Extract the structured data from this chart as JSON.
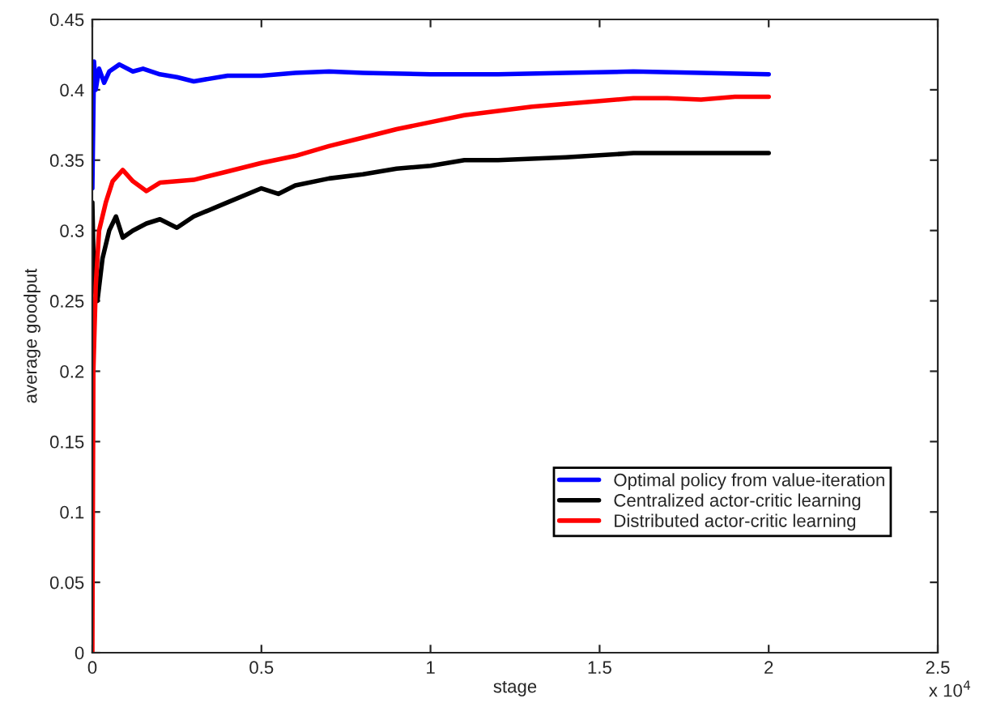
{
  "chart_data": {
    "type": "line",
    "xlabel": "stage",
    "ylabel": "average goodput",
    "xlim": [
      0,
      2.5
    ],
    "ylim": [
      0,
      0.45
    ],
    "xticks": [
      0,
      0.5,
      1,
      1.5,
      2,
      2.5
    ],
    "yticks": [
      0,
      0.05,
      0.1,
      0.15,
      0.2,
      0.25,
      0.3,
      0.35,
      0.4,
      0.45
    ],
    "annotations": [
      "x 10$^{4}$"
    ],
    "legend": "bottom right",
    "grid": false,
    "series": [
      {
        "name": "Optimal policy from value-iteration",
        "color": "#0000ff",
        "x": [
          0,
          0.005,
          0.01,
          0.02,
          0.035,
          0.05,
          0.08,
          0.12,
          0.15,
          0.2,
          0.25,
          0.3,
          0.4,
          0.5,
          0.6,
          0.7,
          0.8,
          1.0,
          1.2,
          1.4,
          1.6,
          1.8,
          2.0
        ],
        "values": [
          0.33,
          0.42,
          0.4,
          0.415,
          0.405,
          0.413,
          0.418,
          0.413,
          0.415,
          0.411,
          0.409,
          0.406,
          0.41,
          0.41,
          0.412,
          0.413,
          0.412,
          0.411,
          0.411,
          0.412,
          0.413,
          0.412,
          0.411
        ]
      },
      {
        "name": "Centralized actor-critic learning",
        "color": "#000000",
        "x": [
          0,
          0.005,
          0.015,
          0.03,
          0.05,
          0.07,
          0.09,
          0.12,
          0.16,
          0.2,
          0.25,
          0.3,
          0.4,
          0.5,
          0.55,
          0.6,
          0.7,
          0.8,
          0.9,
          1.0,
          1.1,
          1.2,
          1.4,
          1.6,
          1.8,
          2.0
        ],
        "values": [
          0.32,
          0.26,
          0.25,
          0.28,
          0.3,
          0.31,
          0.295,
          0.3,
          0.305,
          0.308,
          0.302,
          0.31,
          0.32,
          0.33,
          0.326,
          0.332,
          0.337,
          0.34,
          0.344,
          0.346,
          0.35,
          0.35,
          0.352,
          0.355,
          0.355,
          0.355
        ]
      },
      {
        "name": "Distributed actor-critic learning",
        "color": "#ff0000",
        "x": [
          0,
          0.003,
          0.01,
          0.02,
          0.04,
          0.06,
          0.09,
          0.12,
          0.16,
          0.2,
          0.3,
          0.4,
          0.5,
          0.6,
          0.7,
          0.8,
          0.9,
          1.0,
          1.1,
          1.2,
          1.3,
          1.4,
          1.5,
          1.6,
          1.7,
          1.8,
          1.9,
          2.0
        ],
        "values": [
          0,
          0.2,
          0.26,
          0.3,
          0.32,
          0.335,
          0.343,
          0.335,
          0.328,
          0.334,
          0.336,
          0.342,
          0.348,
          0.353,
          0.36,
          0.366,
          0.372,
          0.377,
          0.382,
          0.385,
          0.388,
          0.39,
          0.392,
          0.394,
          0.394,
          0.393,
          0.395,
          0.395
        ]
      }
    ]
  }
}
